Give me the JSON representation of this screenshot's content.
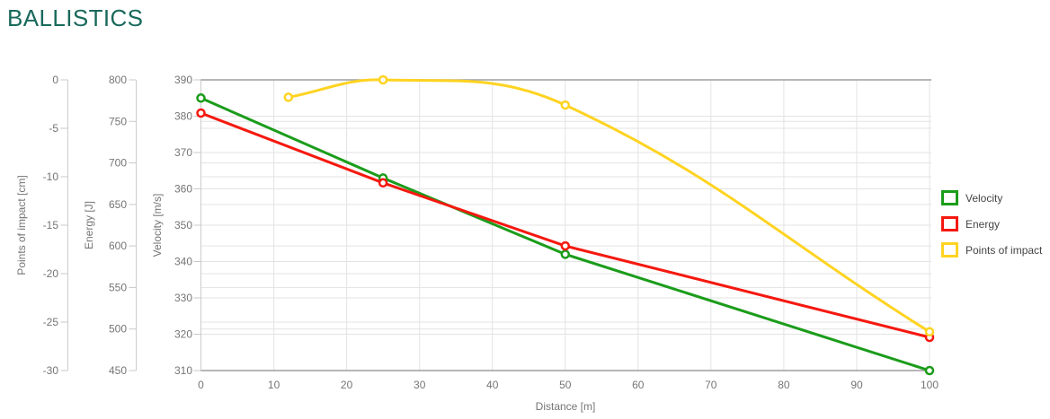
{
  "page": {
    "title": "BALLISTICS"
  },
  "colors": {
    "title": "#19695c",
    "axis_text": "#757575",
    "legend_text": "#454545",
    "grid_minor": "#e3e3e3",
    "grid_axis_line": "#cccccc",
    "grid_border": "#9e9e9e",
    "tick_mark": "#c9c9c9",
    "velocity": "#1b9c1b",
    "energy": "#f5180f",
    "impact": "#ffd321"
  },
  "chart_data": {
    "type": "line",
    "title": "BALLISTICS",
    "xlabel": "Distance [m]",
    "x_range": [
      0,
      100
    ],
    "x_ticks": [
      0,
      10,
      20,
      30,
      40,
      50,
      60,
      70,
      80,
      90,
      100
    ],
    "grid": true,
    "legend_position": "right",
    "y_axes": [
      {
        "id": "impact",
        "label": "Points of impact [cm]",
        "range": [
          -30,
          0
        ],
        "ticks": [
          0,
          -5,
          -10,
          -15,
          -20,
          -25,
          -30
        ]
      },
      {
        "id": "energy",
        "label": "Energy [J]",
        "range": [
          450,
          800
        ],
        "ticks": [
          800,
          750,
          700,
          650,
          600,
          550,
          500,
          450
        ]
      },
      {
        "id": "velocity",
        "label": "Velocity [m/s]",
        "range": [
          310,
          390
        ],
        "ticks": [
          390,
          380,
          370,
          360,
          350,
          340,
          330,
          320,
          310
        ]
      }
    ],
    "series": [
      {
        "name": "Velocity",
        "axis": "velocity",
        "color": "#1b9c1b",
        "smooth": false,
        "points": [
          [
            0,
            385
          ],
          [
            25,
            363
          ],
          [
            50,
            342
          ],
          [
            100,
            310
          ]
        ]
      },
      {
        "name": "Energy",
        "axis": "energy",
        "color": "#f5180f",
        "smooth": false,
        "points": [
          [
            0,
            760
          ],
          [
            25,
            676
          ],
          [
            50,
            600
          ],
          [
            100,
            490
          ]
        ]
      },
      {
        "name": "Points of impact",
        "axis": "impact",
        "color": "#ffd321",
        "smooth": true,
        "points": [
          [
            12,
            -1.8
          ],
          [
            25,
            0
          ],
          [
            50,
            -2.6
          ],
          [
            100,
            -26
          ]
        ]
      }
    ]
  },
  "legend": {
    "items": [
      {
        "label": "Velocity"
      },
      {
        "label": "Energy"
      },
      {
        "label": "Points of impact"
      }
    ]
  }
}
